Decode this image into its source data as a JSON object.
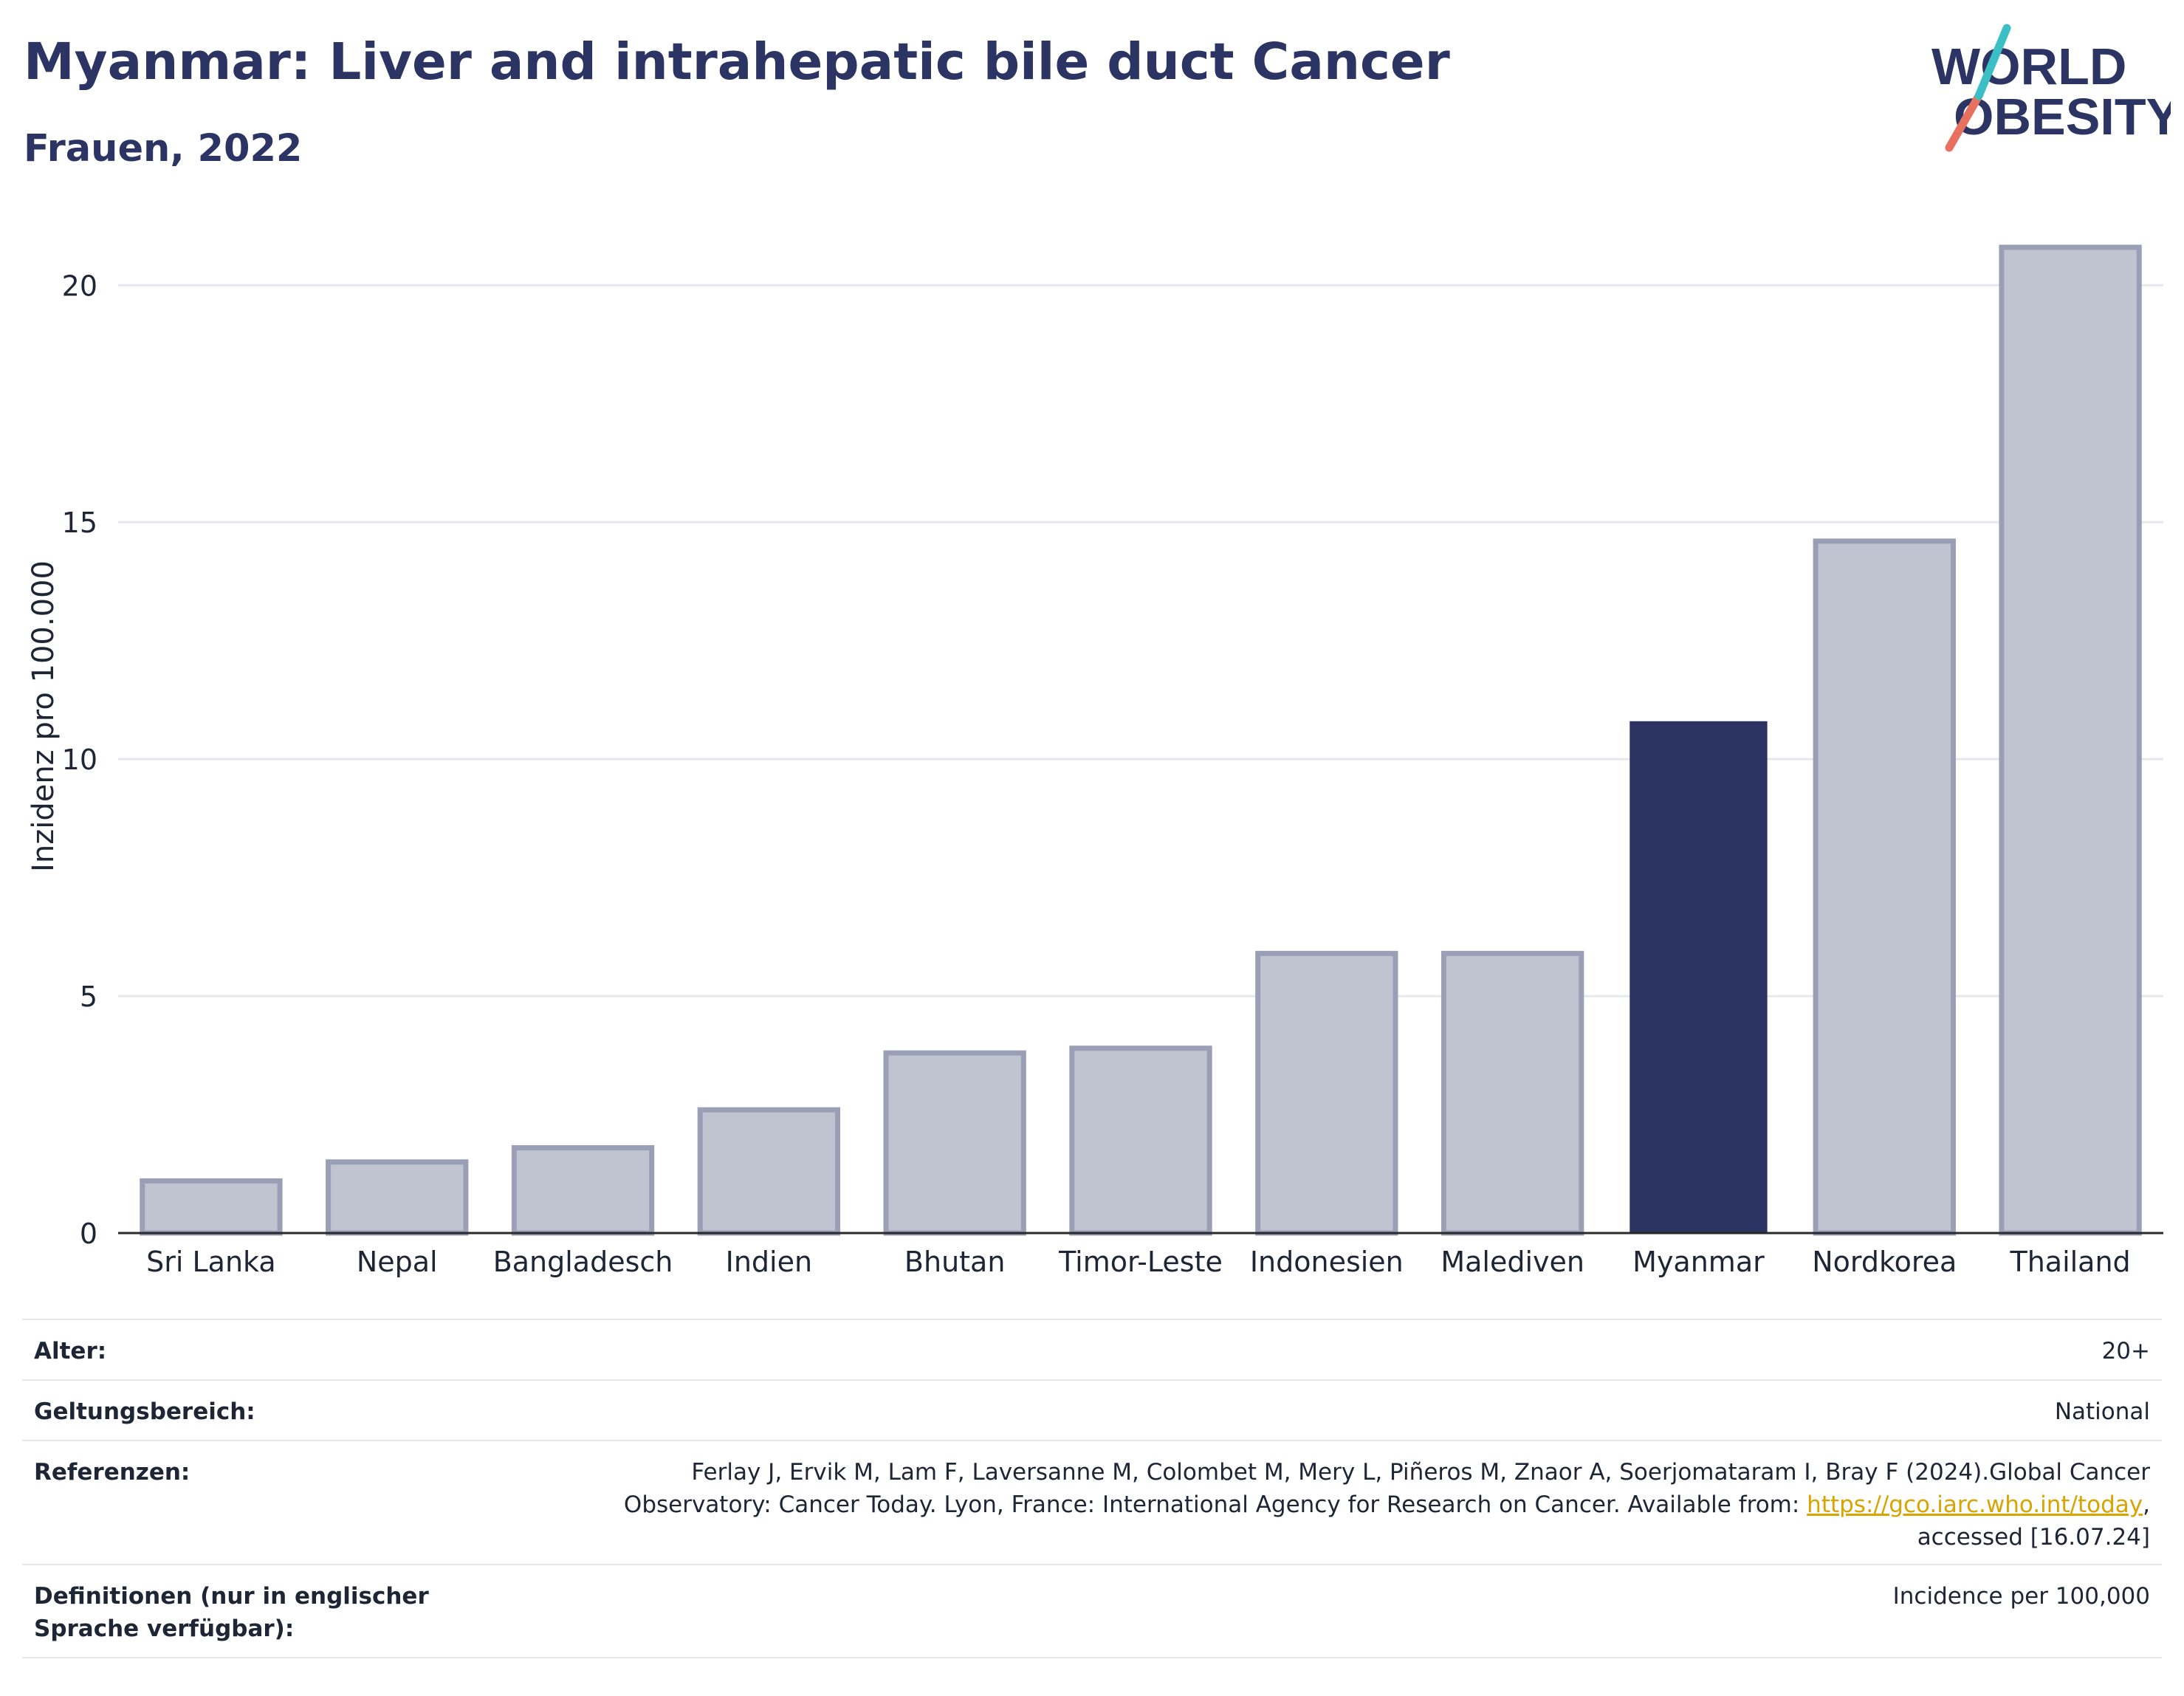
{
  "header": {
    "title": "Myanmar: Liver and intrahepatic bile duct Cancer",
    "subtitle": "Frauen, 2022"
  },
  "logo": {
    "line1": "WORLD",
    "line2": "OBESITY",
    "colors": {
      "text": "#2b3462",
      "slash_teal": "#3bbfc4",
      "slash_coral": "#e8705f"
    }
  },
  "chart_data": {
    "type": "bar",
    "categories": [
      "Sri Lanka",
      "Nepal",
      "Bangladesch",
      "Indien",
      "Bhutan",
      "Timor-Leste",
      "Indonesien",
      "Malediven",
      "Myanmar",
      "Nordkorea",
      "Thailand"
    ],
    "values": [
      1.1,
      1.5,
      1.8,
      2.6,
      3.8,
      3.9,
      5.9,
      5.9,
      10.8,
      14.6,
      20.8
    ],
    "highlight": "Myanmar",
    "ylabel": "Inzidenz pro 100.000",
    "ylim": [
      0,
      21.5
    ],
    "yticks": [
      0,
      5,
      10,
      15,
      20
    ],
    "grid": true,
    "colors": {
      "bar": "#c0c3d0",
      "bar_border": "#9a9fb6",
      "highlight": "#2b3462",
      "grid": "#e6e8ec"
    }
  },
  "meta": {
    "rows": [
      {
        "label": "Alter:",
        "value": "20+"
      },
      {
        "label": "Geltungsbereich:",
        "value": "National"
      },
      {
        "label": "Referenzen:",
        "value_line1": "Ferlay J, Ervik M, Lam F, Laversanne M, Colombet M, Mery L, Piñeros M, Znaor A, Soerjomataram I, Bray F (2024).Global Cancer",
        "value_line2_pre": "Observatory: Cancer Today. Lyon, France: International Agency for Research on Cancer. Available from: ",
        "link": "https://gco.iarc.who.int/today",
        "value_line2_post": ",",
        "value_line3": "accessed [16.07.24]"
      },
      {
        "label": "Definitionen (nur in englischer Sprache verfügbar):",
        "value": "Incidence per 100,000"
      }
    ]
  }
}
